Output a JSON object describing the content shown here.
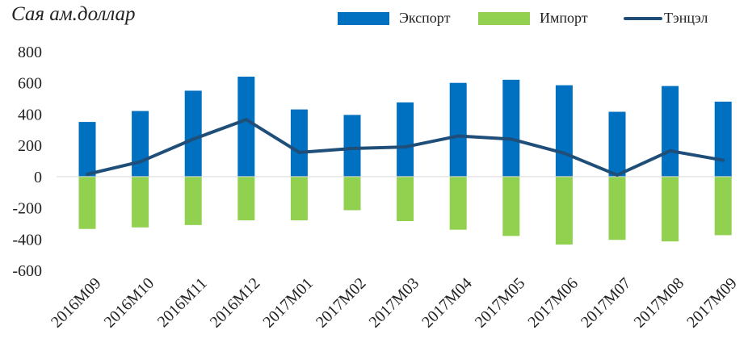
{
  "chart_data": {
    "type": "bar",
    "unit_label": "Сая ам.доллар",
    "categories": [
      "2016M09",
      "2016M10",
      "2016M11",
      "2016M12",
      "2017M01",
      "2017M02",
      "2017M03",
      "2017M04",
      "2017M05",
      "2017M06",
      "2017M07",
      "2017M08",
      "2017M09"
    ],
    "series": [
      {
        "name": "Экспорт",
        "kind": "bar",
        "color": "#0070C0",
        "values": [
          350,
          420,
          550,
          640,
          430,
          395,
          475,
          600,
          620,
          585,
          415,
          580,
          480
        ]
      },
      {
        "name": "Импорт",
        "kind": "bar",
        "color": "#92D050",
        "values": [
          -335,
          -325,
          -310,
          -280,
          -280,
          -215,
          -285,
          -340,
          -380,
          -435,
          -405,
          -415,
          -375
        ]
      },
      {
        "name": "Тэнцэл",
        "kind": "line",
        "color": "#1F4E79",
        "values": [
          15,
          95,
          240,
          365,
          155,
          180,
          190,
          260,
          240,
          150,
          10,
          165,
          105
        ]
      }
    ],
    "yticks": [
      "800",
      "600",
      "400",
      "200",
      "0",
      "-200",
      "-400",
      "-600"
    ],
    "ylim": [
      -600,
      800
    ],
    "legend_position": "top-right",
    "grid": false
  }
}
